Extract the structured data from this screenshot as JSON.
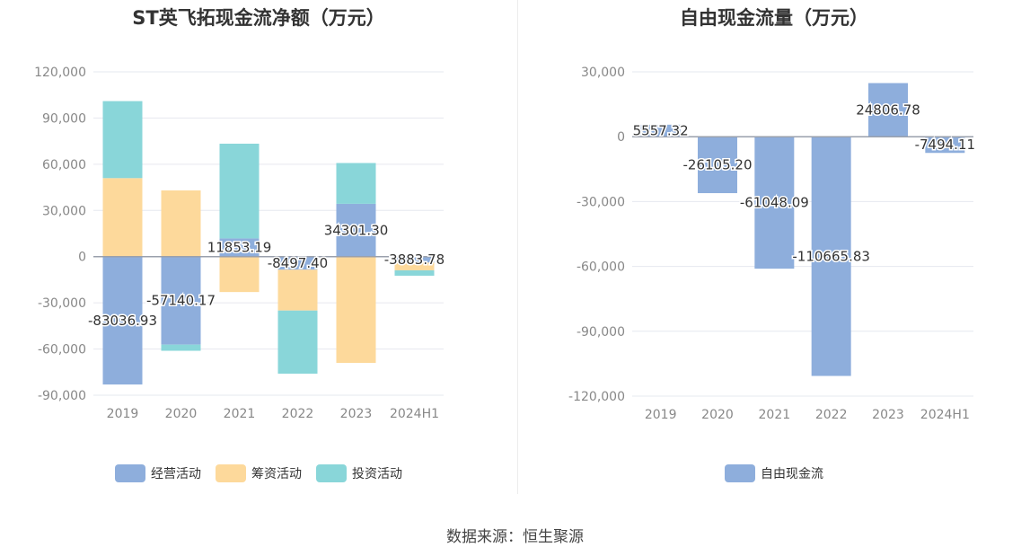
{
  "charts": [
    {
      "title": "ST英飞拓现金流净额（万元）",
      "chart_data": {
        "type": "bar",
        "stacked": true,
        "categories": [
          "2019",
          "2020",
          "2021",
          "2022",
          "2023",
          "2024H1"
        ],
        "ylim": [
          -90000,
          120000
        ],
        "yticks": [
          120000,
          90000,
          60000,
          30000,
          0,
          -30000,
          -60000,
          -90000
        ],
        "ytick_labels": [
          "120,000",
          "90,000",
          "60,000",
          "30,000",
          "0",
          "-30,000",
          "-60,000",
          "-90,000"
        ],
        "grid": true,
        "legend_position": "bottom",
        "series": [
          {
            "name": "经营活动",
            "color": "#8eaedc",
            "values": [
              -83036.93,
              -57140.17,
              11853.19,
              -8497.4,
              34301.3,
              -3883.78
            ],
            "labels": [
              "-83036.93",
              "-57140.17",
              "11853.19",
              "-8497.40",
              "34301.30",
              "-3883.78"
            ]
          },
          {
            "name": "筹资活动",
            "color": "#fdd99b",
            "values": [
              51000,
              43000,
              -23000,
              -26500,
              -69000,
              -5000
            ]
          },
          {
            "name": "投资活动",
            "color": "#89d6d9",
            "values": [
              50000,
              -4000,
              61500,
              -41000,
              26500,
              -3500
            ]
          }
        ]
      }
    },
    {
      "title": "自由现金流量（万元）",
      "chart_data": {
        "type": "bar",
        "categories": [
          "2019",
          "2020",
          "2021",
          "2022",
          "2023",
          "2024H1"
        ],
        "ylim": [
          -120000,
          30000
        ],
        "yticks": [
          30000,
          0,
          -30000,
          -60000,
          -90000,
          -120000
        ],
        "ytick_labels": [
          "30,000",
          "0",
          "-30,000",
          "-60,000",
          "-90,000",
          "-120,000"
        ],
        "grid": true,
        "legend_position": "bottom",
        "series": [
          {
            "name": "自由现金流",
            "color": "#8eaedc",
            "values": [
              5557.32,
              -26105.2,
              -61048.09,
              -110665.83,
              24806.78,
              -7494.11
            ],
            "labels": [
              "5557.32",
              "-26105.20",
              "-61048.09",
              "-110665.83",
              "24806.78",
              "-7494.11"
            ]
          }
        ]
      }
    }
  ],
  "source": "数据来源：恒生聚源"
}
